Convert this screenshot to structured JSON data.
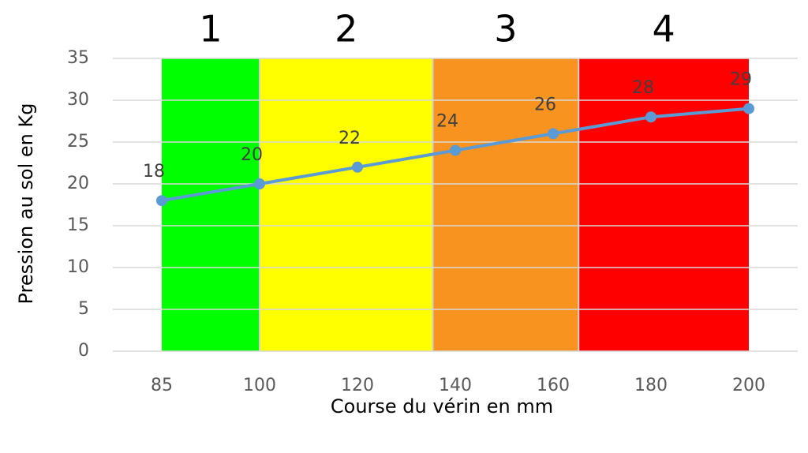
{
  "chart_data": {
    "type": "line",
    "x_label": "Course du vérin en mm",
    "y_label": "Pression au sol en Kg",
    "categories": [
      "85",
      "100",
      "120",
      "140",
      "160",
      "180",
      "200"
    ],
    "values": [
      18,
      20,
      22,
      24,
      26,
      28,
      29
    ],
    "color": "#5b9bd5",
    "ylim": [
      0,
      35
    ],
    "yticks": [
      0,
      5,
      10,
      15,
      20,
      25,
      30,
      35
    ],
    "grid": true,
    "zones": [
      {
        "label": "1",
        "color": "#00ff00"
      },
      {
        "label": "2",
        "color": "#ffff00"
      },
      {
        "label": "3",
        "color": "#f7931e"
      },
      {
        "label": "4",
        "color": "#ff0000"
      }
    ]
  }
}
